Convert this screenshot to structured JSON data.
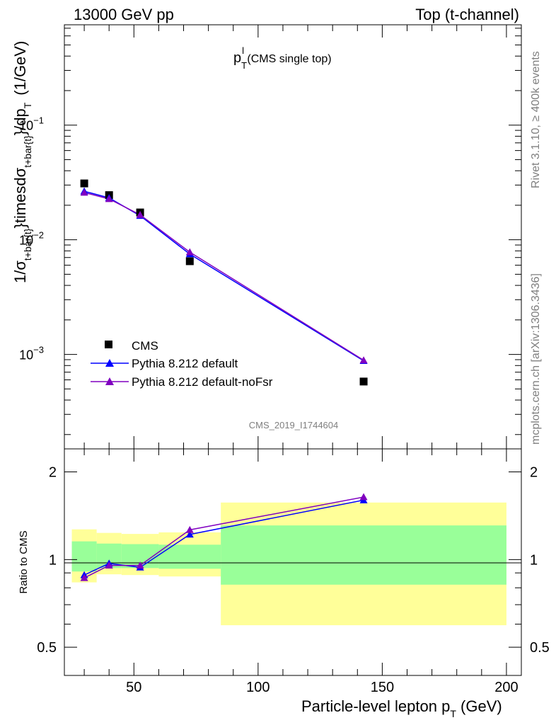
{
  "header": {
    "left": "13000 GeV pp",
    "right": "Top (t-channel)"
  },
  "side": {
    "rivet": "Rivet 3.1.10, ≥ 400k events",
    "mcplots": "mcplots.cern.ch [arXiv:1306.3436]"
  },
  "colors": {
    "cms": "#000000",
    "default": "#0000ff",
    "noFsr": "#8000c0",
    "band_outer": "#ffff99",
    "band_inner": "#99ff99",
    "watermark": "#7f7f7f"
  },
  "chart_data": [
    {
      "panel": "main",
      "type": "line",
      "title": "p_T^l (CMS single top)",
      "title_main": "p",
      "title_sub": "T",
      "title_sup": "l",
      "title_rest": " (CMS single top)",
      "ylabel": "1/σ_{t+bar{t}}timesdσ_{t+bar{t}}/dp_T (1/GeV)",
      "ylabel_parts": {
        "a": "1/σ",
        "sub1": "t+bar{t}",
        "b": "}timesdσ",
        "sub2": "t+bar{t}",
        "c": "}/dp",
        "sub3": "T",
        "d": "(1/GeV)"
      },
      "yscale": "log",
      "ylim": [
        0.00015,
        0.75
      ],
      "xlim": [
        22,
        206
      ],
      "y_ticks": [
        {
          "value": 0.1,
          "base": "10",
          "exp": "−1"
        },
        {
          "value": 0.01,
          "base": "10",
          "exp": "−2"
        },
        {
          "value": 0.001,
          "base": "10",
          "exp": "−3"
        }
      ],
      "watermark": "CMS_2019_I1744604",
      "legend_position": "bottom-left",
      "series": [
        {
          "name": "CMS",
          "marker": "square",
          "color": "#000000",
          "x": [
            30,
            40,
            52.5,
            72.5,
            142.5
          ],
          "y": [
            0.031,
            0.0245,
            0.0173,
            0.0065,
            0.00058
          ]
        },
        {
          "name": "Pythia 8.212 default",
          "marker": "triangle",
          "color": "#0000ff",
          "x": [
            30,
            40,
            52.5,
            72.5,
            142.5
          ],
          "y": [
            0.0265,
            0.0232,
            0.0162,
            0.0075,
            0.00088
          ]
        },
        {
          "name": "Pythia 8.212 default-noFsr",
          "marker": "triangle",
          "color": "#8000c0",
          "x": [
            30,
            40,
            52.5,
            72.5,
            142.5
          ],
          "y": [
            0.0258,
            0.0227,
            0.0165,
            0.0078,
            0.00089
          ]
        }
      ]
    },
    {
      "panel": "ratio",
      "type": "line",
      "ylabel": "Ratio to CMS",
      "xlabel": "Particle-level lepton p_T (GeV)",
      "xlabel_main": "Particle-level lepton p",
      "xlabel_sub": "T",
      "xlabel_rest": " (GeV)",
      "yscale": "log",
      "ylim": [
        0.4,
        2.4
      ],
      "xlim": [
        22,
        206
      ],
      "x_ticks": [
        50,
        100,
        150,
        200
      ],
      "y_ticks": [
        "0.5",
        "1",
        "2"
      ],
      "y_tick_values": [
        0.5,
        1,
        2
      ],
      "bins": [
        {
          "lo": 25,
          "hi": 35,
          "band_outer": [
            0.835,
            1.27
          ],
          "band_inner": [
            0.91,
            1.155
          ]
        },
        {
          "lo": 35,
          "hi": 45,
          "band_outer": [
            0.89,
            1.235
          ],
          "band_inner": [
            0.935,
            1.135
          ]
        },
        {
          "lo": 45,
          "hi": 60,
          "band_outer": [
            0.885,
            1.225
          ],
          "band_inner": [
            0.935,
            1.13
          ]
        },
        {
          "lo": 60,
          "hi": 85,
          "band_outer": [
            0.875,
            1.24
          ],
          "band_inner": [
            0.93,
            1.125
          ]
        },
        {
          "lo": 85,
          "hi": 200,
          "band_outer": [
            0.595,
            1.57
          ],
          "band_inner": [
            0.82,
            1.31
          ]
        }
      ],
      "series": [
        {
          "name": "Pythia 8.212 default",
          "color": "#0000ff",
          "x": [
            30,
            40,
            52.5,
            72.5,
            142.5
          ],
          "y": [
            0.885,
            0.97,
            0.94,
            1.22,
            1.6
          ]
        },
        {
          "name": "Pythia 8.212 default-noFsr",
          "color": "#8000c0",
          "x": [
            30,
            40,
            52.5,
            72.5,
            142.5
          ],
          "y": [
            0.865,
            0.955,
            0.955,
            1.265,
            1.64
          ]
        }
      ]
    }
  ]
}
